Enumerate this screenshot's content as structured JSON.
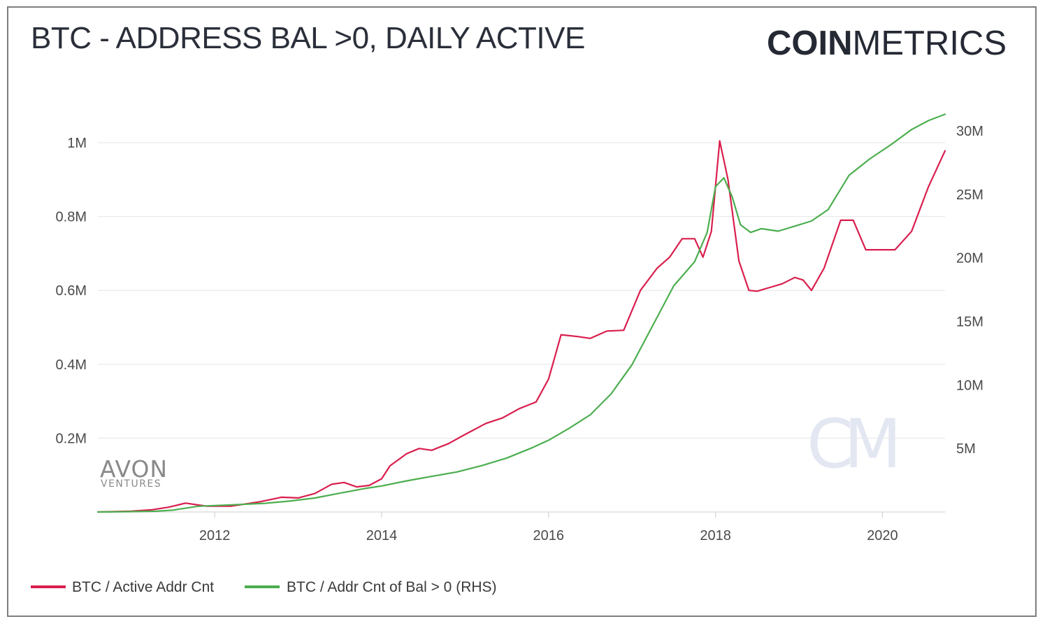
{
  "title": "BTC - ADDRESS BAL >0, DAILY ACTIVE",
  "brand": {
    "bold": "COIN",
    "light": "METRICS",
    "watermark": "CM"
  },
  "sponsor": {
    "line1": "AVON",
    "line2": "VENTURES"
  },
  "colors": {
    "active": "#d91e4e",
    "balance": "#4cae4f",
    "grid": "#e6e6e6",
    "axis": "#cccccc",
    "watermark": "#e3e7f1"
  },
  "chart_data": {
    "type": "line",
    "title": "BTC - ADDRESS BAL >0, DAILY ACTIVE",
    "x_range": [
      2010.6,
      2020.75
    ],
    "x_ticks": [
      {
        "value": 2012,
        "label": "2012"
      },
      {
        "value": 2014,
        "label": "2014"
      },
      {
        "value": 2016,
        "label": "2016"
      },
      {
        "value": 2018,
        "label": "2018"
      },
      {
        "value": 2020,
        "label": "2020"
      }
    ],
    "y_left": {
      "range": [
        0,
        1000000
      ],
      "ticks": [
        {
          "value": 200000,
          "label": "0.2M"
        },
        {
          "value": 400000,
          "label": "0.4M"
        },
        {
          "value": 600000,
          "label": "0.6M"
        },
        {
          "value": 800000,
          "label": "0.8M"
        },
        {
          "value": 1000000,
          "label": "1M"
        }
      ]
    },
    "y_right": {
      "range": [
        0,
        30000000
      ],
      "ticks": [
        {
          "value": 5000000,
          "label": "5M"
        },
        {
          "value": 10000000,
          "label": "10M"
        },
        {
          "value": 15000000,
          "label": "15M"
        },
        {
          "value": 20000000,
          "label": "20M"
        },
        {
          "value": 25000000,
          "label": "25M"
        },
        {
          "value": 30000000,
          "label": "30M"
        }
      ]
    },
    "series": [
      {
        "name": "BTC / Active Addr Cnt",
        "axis": "left",
        "color": "#d91e4e",
        "x": [
          2010.6,
          2011.0,
          2011.25,
          2011.45,
          2011.65,
          2011.9,
          2012.2,
          2012.55,
          2012.8,
          2013.0,
          2013.2,
          2013.4,
          2013.55,
          2013.7,
          2013.85,
          2014.0,
          2014.1,
          2014.3,
          2014.45,
          2014.6,
          2014.8,
          2015.0,
          2015.25,
          2015.45,
          2015.65,
          2015.85,
          2016.0,
          2016.15,
          2016.35,
          2016.5,
          2016.7,
          2016.9,
          2017.1,
          2017.3,
          2017.45,
          2017.6,
          2017.75,
          2017.85,
          2017.95,
          2018.05,
          2018.15,
          2018.28,
          2018.4,
          2018.5,
          2018.65,
          2018.8,
          2018.95,
          2019.05,
          2019.15,
          2019.3,
          2019.5,
          2019.65,
          2019.8,
          2019.95,
          2020.15,
          2020.35,
          2020.55,
          2020.75
        ],
        "values": [
          0,
          2000,
          6000,
          13000,
          24000,
          16000,
          16000,
          28000,
          40000,
          38000,
          50000,
          75000,
          80000,
          68000,
          72000,
          90000,
          125000,
          158000,
          172000,
          167000,
          185000,
          210000,
          240000,
          255000,
          280000,
          298000,
          360000,
          480000,
          475000,
          470000,
          490000,
          492000,
          600000,
          660000,
          690000,
          740000,
          740000,
          690000,
          760000,
          1005000,
          900000,
          680000,
          600000,
          598000,
          608000,
          618000,
          635000,
          628000,
          600000,
          660000,
          790000,
          790000,
          710000,
          710000,
          710000,
          760000,
          880000,
          978000
        ]
      },
      {
        "name": "BTC / Addr Cnt of Bal > 0 (RHS)",
        "axis": "right",
        "color": "#4cae4f",
        "x": [
          2010.6,
          2011.0,
          2011.3,
          2011.5,
          2011.8,
          2012.2,
          2012.6,
          2012.9,
          2013.2,
          2013.5,
          2013.8,
          2014.0,
          2014.3,
          2014.6,
          2014.9,
          2015.2,
          2015.5,
          2015.8,
          2016.0,
          2016.25,
          2016.5,
          2016.75,
          2017.0,
          2017.25,
          2017.5,
          2017.75,
          2017.9,
          2018.0,
          2018.1,
          2018.2,
          2018.3,
          2018.42,
          2018.55,
          2018.75,
          2018.95,
          2019.15,
          2019.35,
          2019.6,
          2019.85,
          2020.1,
          2020.35,
          2020.55,
          2020.75
        ],
        "values": [
          0,
          30000,
          60000,
          150000,
          450000,
          560000,
          680000,
          860000,
          1100000,
          1480000,
          1850000,
          2050000,
          2450000,
          2800000,
          3150000,
          3650000,
          4250000,
          5050000,
          5650000,
          6600000,
          7650000,
          9300000,
          11600000,
          14700000,
          17800000,
          19700000,
          22000000,
          25600000,
          26300000,
          24800000,
          22600000,
          22000000,
          22300000,
          22100000,
          22500000,
          22900000,
          23800000,
          26500000,
          27800000,
          28900000,
          30100000,
          30800000,
          31300000
        ]
      }
    ],
    "legend": [
      "BTC / Active Addr Cnt",
      "BTC / Addr Cnt of Bal > 0 (RHS)"
    ],
    "legend_position": "bottom-left"
  }
}
